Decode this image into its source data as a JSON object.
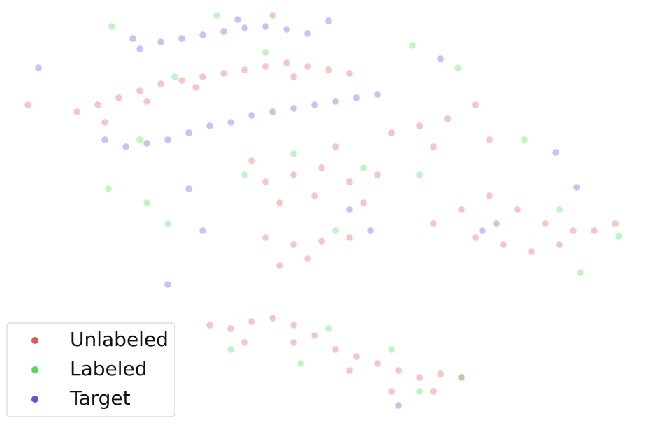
{
  "chart_data": {
    "type": "scatter",
    "series": [
      {
        "name": "Unlabeled",
        "color": "#db5f57",
        "x": [
          11,
          14,
          17,
          20,
          23,
          26,
          29,
          32,
          35,
          38,
          41,
          44,
          47,
          50,
          15,
          21,
          28,
          42,
          39,
          38,
          42,
          46,
          50,
          54,
          40,
          45,
          52,
          36,
          48,
          56,
          60,
          64,
          62,
          68,
          70,
          62,
          66,
          70,
          74,
          78,
          82,
          85,
          88,
          72,
          76,
          68,
          80,
          38,
          42,
          46,
          50,
          44,
          40,
          30,
          33,
          36,
          39,
          42,
          45,
          48,
          51,
          54,
          57,
          60,
          63,
          66,
          35,
          42,
          50,
          56,
          62,
          4
        ],
        "y": [
          44,
          45,
          46,
          47,
          48,
          48.5,
          49,
          49.5,
          50,
          50.5,
          51,
          50.5,
          50,
          49.5,
          42.5,
          45.5,
          47.5,
          49,
          57.8,
          34,
          35,
          36,
          34,
          35,
          31,
          32,
          31,
          37,
          39,
          41,
          42,
          43,
          39,
          45,
          40,
          28,
          30,
          32,
          30,
          28,
          27,
          27,
          28,
          25,
          24,
          26,
          25,
          26,
          25,
          25.5,
          26,
          23,
          22,
          13.5,
          13,
          14,
          14.5,
          13.5,
          12,
          10,
          9,
          8,
          7,
          6,
          6.5,
          6,
          11,
          11,
          7,
          4,
          4,
          45
        ]
      },
      {
        "name": "Labeled",
        "color": "#57db5e",
        "x": [
          16,
          31,
          38,
          25,
          20,
          15.5,
          21,
          35,
          42,
          52,
          48,
          60,
          75,
          80,
          83,
          88.5,
          33,
          43,
          47,
          60,
          56,
          66,
          24,
          59,
          65.5
        ],
        "y": [
          56.2,
          57.8,
          52.5,
          49,
          40,
          33,
          31,
          35,
          38,
          36,
          27,
          35,
          40,
          30,
          21,
          26.2,
          10,
          8,
          13,
          4,
          10,
          6,
          28,
          53.5,
          50.3
        ]
      },
      {
        "name": "Target",
        "color": "#5e57db",
        "x": [
          15,
          18,
          21,
          24,
          27,
          30,
          33,
          36,
          39,
          42,
          45,
          48,
          51,
          54,
          20,
          23,
          26,
          29,
          32,
          35,
          38,
          41,
          44,
          47,
          34,
          19,
          5.5,
          24,
          29,
          50,
          69,
          71,
          82.5,
          79.5,
          57,
          53,
          63,
          27
        ],
        "y": [
          40,
          39,
          39.5,
          40,
          41,
          42,
          42.5,
          43.5,
          44,
          44.5,
          45,
          45.5,
          46,
          46.5,
          53,
          54,
          54.5,
          55,
          55.5,
          56,
          56.2,
          55.8,
          55.2,
          57,
          57.2,
          54.5,
          50.3,
          19.3,
          27,
          30,
          27,
          28,
          33.2,
          38.2,
          2,
          27,
          51.6,
          33
        ]
      }
    ]
  }
}
